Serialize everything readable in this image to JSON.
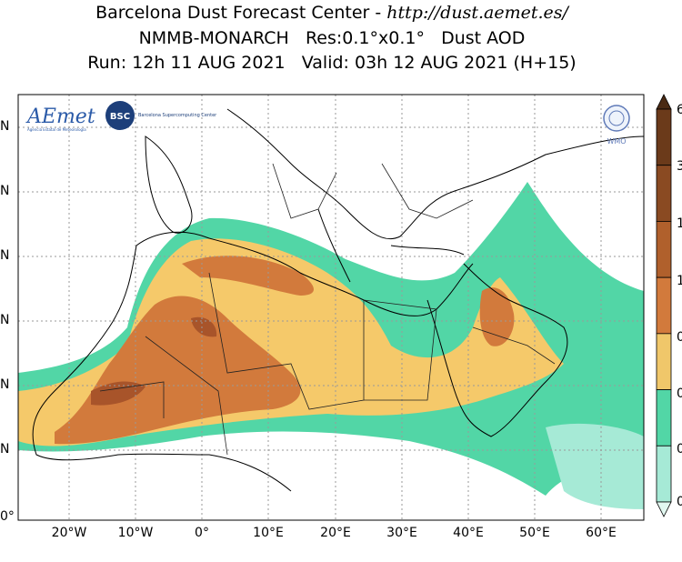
{
  "header": {
    "line1_main": "Barcelona Dust Forecast Center - ",
    "line1_url": "http://dust.aemet.es/",
    "line2": "NMMB-MONARCH   Res:0.1°x0.1°   Dust AOD",
    "line3": "Run: 12h 11 AUG 2021   Valid: 03h 12 AUG 2021 (H+15)"
  },
  "logos": {
    "aemet": "AEmet",
    "aemet_sub": "Agencia Estatal de Meteorología",
    "bsc": "BSC",
    "bsc_text": "Barcelona Supercomputing Center",
    "wmo": "WMO"
  },
  "map": {
    "lon_labels": [
      "20°W",
      "10°W",
      "0°",
      "10°E",
      "20°E",
      "30°E",
      "40°E",
      "50°E",
      "60°E"
    ],
    "lat_labels": [
      "N",
      "N",
      "N",
      "N",
      "N",
      "N",
      "0°"
    ]
  },
  "colorbar": {
    "tick_labels": [
      "6",
      "3",
      "1",
      "1",
      "0",
      "0",
      "0",
      "0"
    ],
    "colors": [
      "#4a2a14",
      "#6b3a1a",
      "#8a4a22",
      "#b0602c",
      "#d27a3c",
      "#f0c76a",
      "#52d6a6",
      "#a6ead6",
      "#e2f8f1"
    ]
  }
}
